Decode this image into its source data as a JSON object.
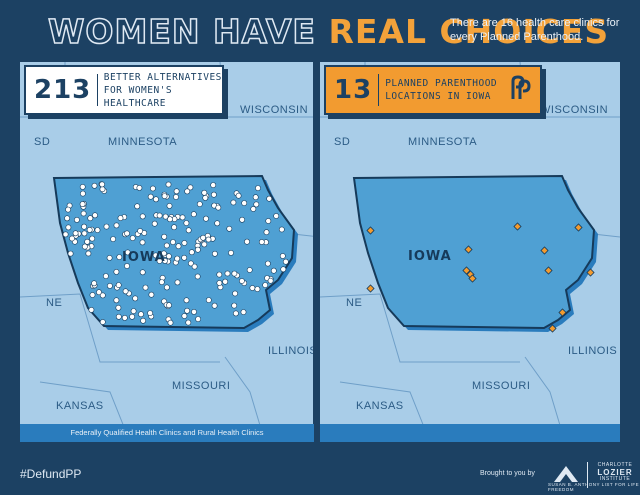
{
  "header": {
    "title_plain": "WOMEN HAVE",
    "title_accent": "REAL CHOICES",
    "subtitle": "There are 16 health care clinics for every Planned Parenthood."
  },
  "left_panel": {
    "count": "213",
    "label": "BETTER ALTERNATIVES FOR WOMEN'S HEALTHCARE",
    "caption": "Federally Qualified Health Clinics and Rural Health Clinics",
    "labels": {
      "sd": "SD",
      "minnesota": "MINNESOTA",
      "wisconsin": "WISCONSIN",
      "iowa": "IOWA",
      "ne": "NE",
      "illinois": "ILLINOIS",
      "missouri": "MISSOURI",
      "kansas": "KANSAS"
    }
  },
  "right_panel": {
    "count": "13",
    "label": "PLANNED PARENTHOOD LOCATIONS IN IOWA",
    "logo": "planned-parenthood-logo",
    "labels": {
      "sd": "SD",
      "minnesota": "MINNESOTA",
      "wisconsin": "WISCONSIN",
      "iowa": "IOWA",
      "ne": "NE",
      "illinois": "ILLINOIS",
      "missouri": "MISSOURI",
      "kansas": "KANSAS"
    }
  },
  "footer": {
    "hashtag": "#DefundPP",
    "brought_by": "Brought to you by",
    "sba_name": "SUSAN B. ANTHONY LIST FOR LIFE FREEDOM",
    "cli_line1": "CHARLOTTE",
    "cli_line2": "LOZIER",
    "cli_line3": "INSTITUTE"
  },
  "colors": {
    "background": "#1c4163",
    "water_land": "#a9cde8",
    "iowa_fill": "#4fa0d3",
    "accent_orange": "#f29b30",
    "clinic_dot": "#ffffff"
  }
}
